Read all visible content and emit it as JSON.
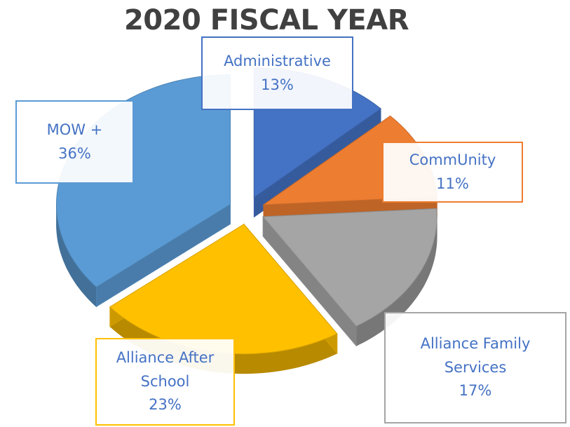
{
  "chart_data": {
    "type": "pie",
    "title": "2020 FISCAL YEAR",
    "style": "3d-exploded",
    "slices": [
      {
        "name": "Administrative",
        "value": 13,
        "label": "13%",
        "color": "#4472c4"
      },
      {
        "name": "CommUnity",
        "value": 11,
        "label": "11%",
        "color": "#ed7d31"
      },
      {
        "name": "Alliance Family Services",
        "value": 17,
        "label": "17%",
        "color": "#a5a5a5"
      },
      {
        "name": "Alliance After School",
        "value": 23,
        "label": "23%",
        "color": "#ffc000"
      },
      {
        "name": "MOW +",
        "value": 36,
        "label": "36%",
        "color": "#5b9bd5"
      }
    ],
    "label_lines": [
      [
        "Administrative"
      ],
      [
        "CommUnity"
      ],
      [
        "Alliance Family",
        "Services"
      ],
      [
        "Alliance After",
        "School"
      ],
      [
        "MOW +"
      ]
    ],
    "legend": "none",
    "grid": false
  }
}
